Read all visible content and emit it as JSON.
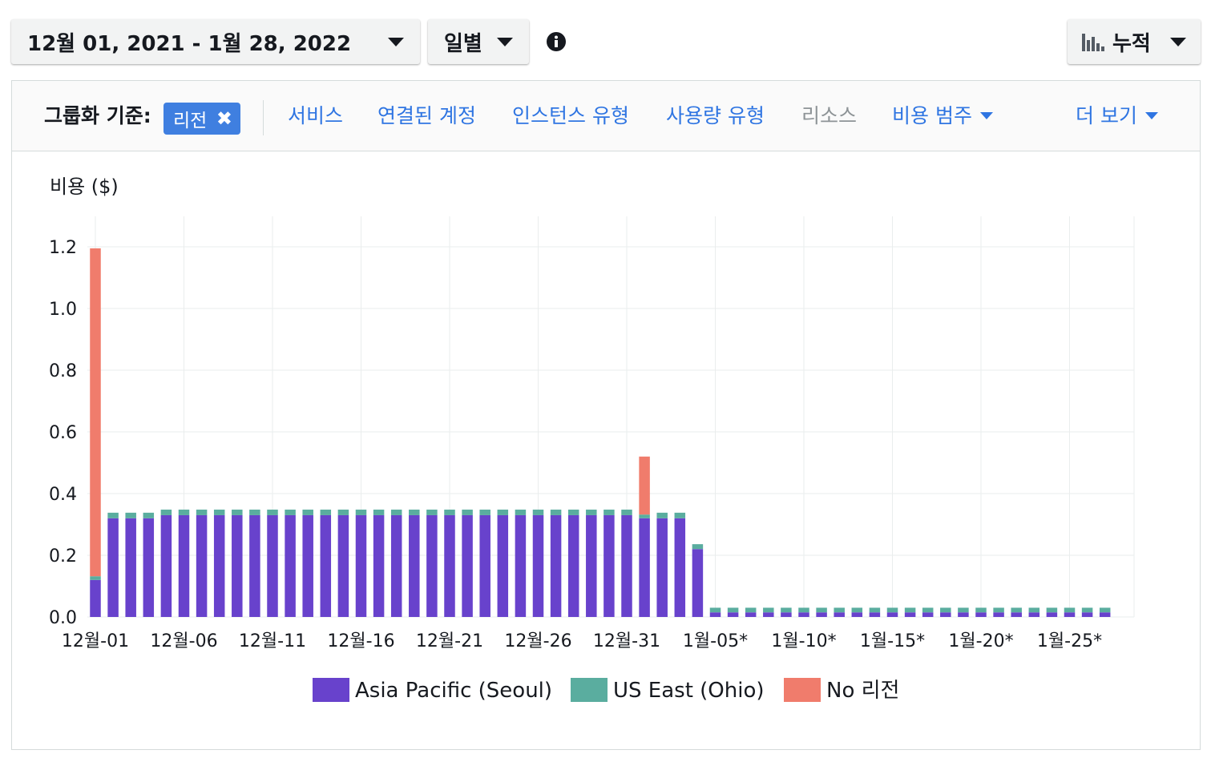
{
  "toolbar": {
    "date_range": "12월 01, 2021 - 1월 28, 2022",
    "granularity": "일별",
    "chart_style": "누적"
  },
  "groupbar": {
    "label": "그룹화 기준:",
    "selected_chip": "리전",
    "options": [
      "서비스",
      "연결된 계정",
      "인스턴스 유형",
      "사용량 유형",
      "리소스",
      "비용 범주"
    ],
    "more": "더 보기"
  },
  "colors": {
    "seoul": "#6842cc",
    "ohio": "#5aad9f",
    "no_region": "#f07c6c",
    "link": "#2f75e2",
    "chip": "#3f7fe0"
  },
  "chart_data": {
    "type": "bar",
    "stacked": true,
    "ylabel": "비용 ($)",
    "ylim": [
      0,
      1.2
    ],
    "yticks": [
      "0.0",
      "0.2",
      "0.4",
      "0.6",
      "0.8",
      "1.0",
      "1.2"
    ],
    "xticks": [
      "12월-01",
      "12월-06",
      "12월-11",
      "12월-16",
      "12월-21",
      "12월-26",
      "12월-31",
      "1월-05*",
      "1월-10*",
      "1월-15*",
      "1월-20*",
      "1월-25*"
    ],
    "legend_position": "bottom",
    "grid": true,
    "series": [
      {
        "name": "Asia Pacific (Seoul)",
        "values": [
          0.12,
          0.32,
          0.32,
          0.32,
          0.33,
          0.33,
          0.33,
          0.33,
          0.33,
          0.33,
          0.33,
          0.33,
          0.33,
          0.33,
          0.33,
          0.33,
          0.33,
          0.33,
          0.33,
          0.33,
          0.33,
          0.33,
          0.33,
          0.33,
          0.33,
          0.33,
          0.33,
          0.33,
          0.33,
          0.33,
          0.33,
          0.32,
          0.32,
          0.32,
          0.22,
          0.015,
          0.015,
          0.015,
          0.015,
          0.015,
          0.015,
          0.015,
          0.015,
          0.015,
          0.015,
          0.015,
          0.015,
          0.015,
          0.015,
          0.015,
          0.015,
          0.015,
          0.015,
          0.015,
          0.015,
          0.015,
          0.015,
          0.015
        ]
      },
      {
        "name": "US East (Ohio)",
        "values": [
          0.012,
          0.018,
          0.018,
          0.018,
          0.018,
          0.018,
          0.018,
          0.018,
          0.018,
          0.018,
          0.018,
          0.018,
          0.018,
          0.018,
          0.018,
          0.018,
          0.018,
          0.018,
          0.018,
          0.018,
          0.018,
          0.018,
          0.018,
          0.018,
          0.018,
          0.018,
          0.018,
          0.018,
          0.018,
          0.018,
          0.018,
          0.012,
          0.018,
          0.018,
          0.016,
          0.015,
          0.015,
          0.015,
          0.015,
          0.015,
          0.015,
          0.015,
          0.015,
          0.015,
          0.015,
          0.015,
          0.015,
          0.015,
          0.015,
          0.015,
          0.015,
          0.015,
          0.015,
          0.015,
          0.015,
          0.015,
          0.015,
          0.015
        ]
      },
      {
        "name": "No 리전",
        "values": [
          1.063,
          0,
          0,
          0,
          0,
          0,
          0,
          0,
          0,
          0,
          0,
          0,
          0,
          0,
          0,
          0,
          0,
          0,
          0,
          0,
          0,
          0,
          0,
          0,
          0,
          0,
          0,
          0,
          0,
          0,
          0,
          0.188,
          0,
          0,
          0,
          0,
          0,
          0,
          0,
          0,
          0,
          0,
          0,
          0,
          0,
          0,
          0,
          0,
          0,
          0,
          0,
          0,
          0,
          0,
          0,
          0,
          0,
          0
        ]
      }
    ]
  }
}
